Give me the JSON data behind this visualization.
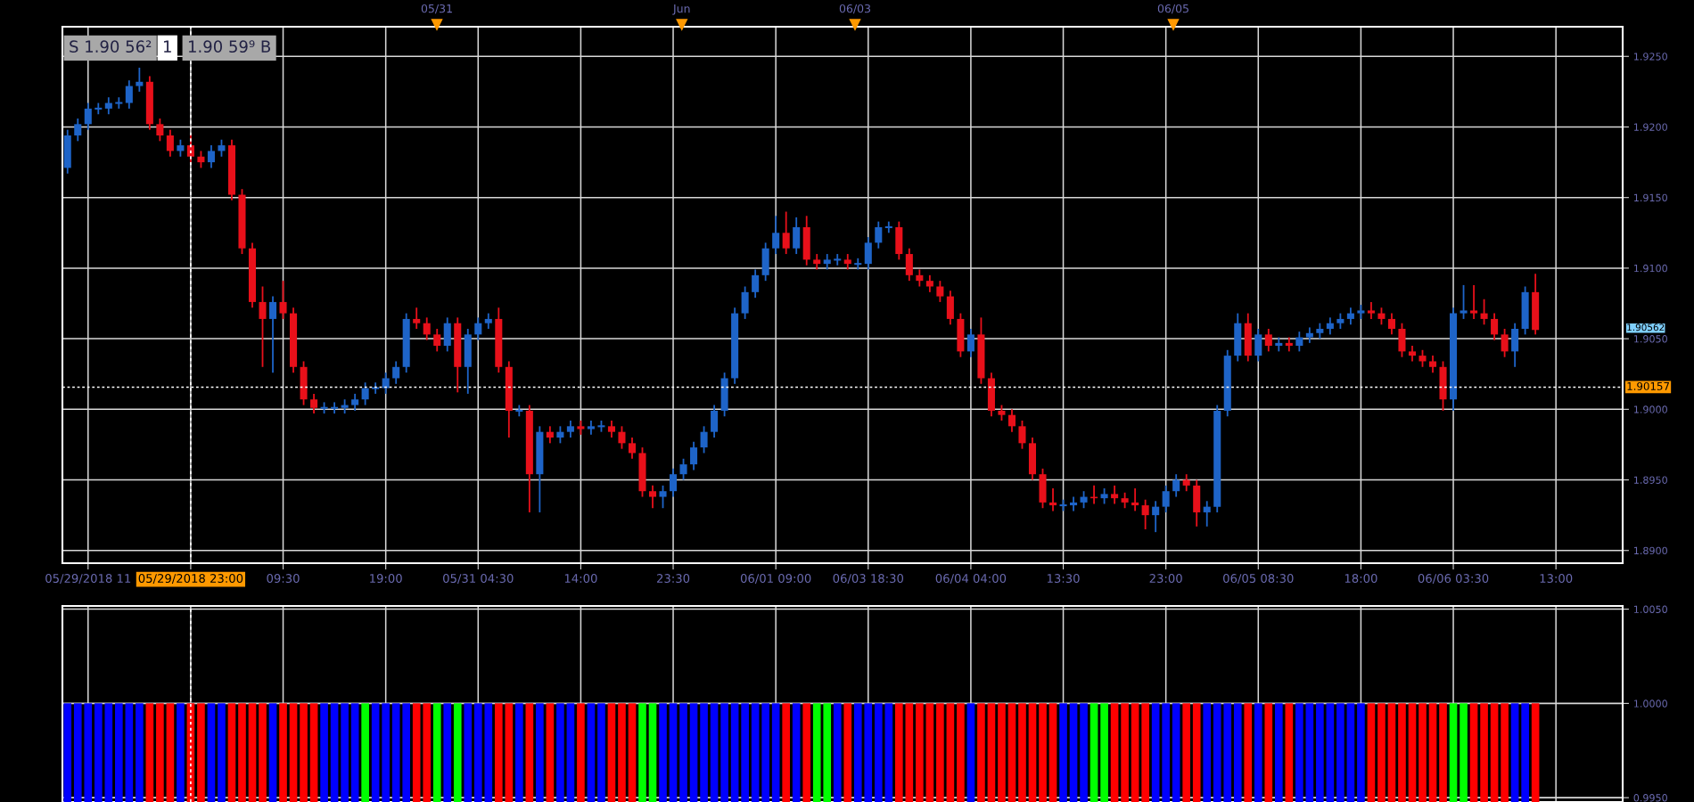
{
  "chart_data": [
    {
      "type": "candlestick",
      "annotations": [
        "S 1.90 56²",
        "1",
        "1.90 59⁹ B",
        "05/31",
        "Jun",
        "06/03",
        "06/05",
        "1.90562"
      ],
      "categories": [
        null,
        null,
        "05/29/2018 11",
        null,
        null,
        null,
        null,
        null,
        null,
        null,
        null,
        null,
        "05/29/2018 23:00",
        null,
        null,
        null,
        null,
        null,
        null,
        null,
        null,
        "09:30",
        null,
        null,
        null,
        null,
        null,
        null,
        null,
        null,
        null,
        "19:00",
        null,
        null,
        null,
        null,
        null,
        null,
        null,
        null,
        "05/31 04:30",
        null,
        null,
        null,
        null,
        null,
        null,
        null,
        null,
        null,
        "14:00",
        null,
        null,
        null,
        null,
        null,
        null,
        null,
        null,
        "23:30",
        null,
        null,
        null,
        null,
        null,
        null,
        null,
        null,
        null,
        "06/01 09:00",
        null,
        null,
        null,
        null,
        null,
        null,
        null,
        null,
        "06/03 18:30",
        null,
        null,
        null,
        null,
        null,
        null,
        null,
        null,
        null,
        "06/04 04:00",
        null,
        null,
        null,
        null,
        null,
        null,
        null,
        null,
        "13:30",
        null,
        null,
        null,
        null,
        null,
        null,
        null,
        null,
        null,
        "23:00",
        null,
        null,
        null,
        null,
        null,
        null,
        null,
        null,
        "06/05 08:30",
        null,
        null,
        null,
        null,
        null,
        null,
        null,
        null,
        null,
        "18:00",
        null,
        null,
        null,
        null,
        null,
        null,
        null,
        null,
        "06/06 03:30",
        null,
        null,
        null,
        null,
        null,
        null,
        null,
        null,
        null,
        "13:00",
        null,
        null,
        null,
        null,
        null,
        null
      ],
      "ylim": [
        1.8891,
        1.9271
      ],
      "yticks": [
        {
          "value": 1.89,
          "label": "1.8900"
        },
        {
          "value": 1.895,
          "label": "1.8950"
        },
        {
          "value": 1.9,
          "label": "1.9000"
        },
        {
          "value": 1.905,
          "label": "1.9050"
        },
        {
          "value": 1.91,
          "label": "1.9100"
        },
        {
          "value": 1.915,
          "label": "1.9150"
        },
        {
          "value": 1.92,
          "label": "1.9200"
        },
        {
          "value": 1.925,
          "label": "1.9250"
        }
      ],
      "grid": true,
      "ref_lines": [
        {
          "axis": "y",
          "value": 1.90157,
          "label": "1.90157",
          "line_style": "dotted"
        },
        {
          "axis": "x",
          "value": "05/29/2018 23:00",
          "line_style": "dotted"
        }
      ],
      "ohlc": [
        [
          1.9171,
          1.9198,
          1.9167,
          1.9194
        ],
        [
          1.9194,
          1.9206,
          1.919,
          1.9202
        ],
        [
          1.9202,
          1.9217,
          1.9198,
          1.9213
        ],
        [
          1.9213,
          1.9217,
          1.9209,
          1.9213
        ],
        [
          1.9213,
          1.9221,
          1.9209,
          1.9217
        ],
        [
          1.9217,
          1.9221,
          1.9213,
          1.9217
        ],
        [
          1.9217,
          1.9233,
          1.9213,
          1.9229
        ],
        [
          1.9229,
          1.9242,
          1.9225,
          1.9232
        ],
        [
          1.9232,
          1.9236,
          1.9198,
          1.9202
        ],
        [
          1.9202,
          1.9206,
          1.919,
          1.9194
        ],
        [
          1.9194,
          1.9198,
          1.9179,
          1.9183
        ],
        [
          1.9183,
          1.9191,
          1.9179,
          1.9187
        ],
        [
          1.9187,
          1.9195,
          1.9175,
          1.9179
        ],
        [
          1.9179,
          1.9183,
          1.9171,
          1.9175
        ],
        [
          1.9175,
          1.9187,
          1.9171,
          1.9183
        ],
        [
          1.9183,
          1.9191,
          1.9179,
          1.9187
        ],
        [
          1.9187,
          1.9191,
          1.9148,
          1.9152
        ],
        [
          1.9152,
          1.9156,
          1.911,
          1.9114
        ],
        [
          1.9114,
          1.9118,
          1.9072,
          1.9076
        ],
        [
          1.9076,
          1.9087,
          1.903,
          1.9064
        ],
        [
          1.9064,
          1.908,
          1.9026,
          1.9076
        ],
        [
          1.9076,
          1.9091,
          1.9064,
          1.9068
        ],
        [
          1.9068,
          1.9072,
          1.9026,
          1.903
        ],
        [
          1.903,
          1.9034,
          1.9003,
          1.9007
        ],
        [
          1.9007,
          1.9011,
          1.8997,
          1.9001
        ],
        [
          1.9001,
          1.9005,
          1.8997,
          1.9001
        ],
        [
          1.9001,
          1.9005,
          1.8997,
          1.9001
        ],
        [
          1.9001,
          1.9007,
          1.8997,
          1.9003
        ],
        [
          1.9003,
          1.9011,
          1.8999,
          1.9007
        ],
        [
          1.9007,
          1.9019,
          1.9003,
          1.9015
        ],
        [
          1.9015,
          1.9019,
          1.9011,
          1.9015
        ],
        [
          1.9015,
          1.9026,
          1.9011,
          1.9022
        ],
        [
          1.9022,
          1.9034,
          1.9018,
          1.903
        ],
        [
          1.903,
          1.9068,
          1.9026,
          1.9064
        ],
        [
          1.9064,
          1.9072,
          1.9057,
          1.9061
        ],
        [
          1.9061,
          1.9065,
          1.9049,
          1.9053
        ],
        [
          1.9053,
          1.9057,
          1.9041,
          1.9045
        ],
        [
          1.9045,
          1.9065,
          1.9041,
          1.9061
        ],
        [
          1.9061,
          1.9065,
          1.9012,
          1.903
        ],
        [
          1.903,
          1.9057,
          1.9011,
          1.9053
        ],
        [
          1.9053,
          1.9065,
          1.9049,
          1.9061
        ],
        [
          1.9061,
          1.9068,
          1.9057,
          1.9064
        ],
        [
          1.9064,
          1.9072,
          1.9026,
          1.903
        ],
        [
          1.903,
          1.9034,
          1.898,
          1.8999
        ],
        [
          1.8999,
          1.9003,
          1.8995,
          1.8999
        ],
        [
          1.8999,
          1.9003,
          1.8927,
          1.8954
        ],
        [
          1.8954,
          1.8988,
          1.8927,
          1.8984
        ],
        [
          1.8984,
          1.8988,
          1.8976,
          1.898
        ],
        [
          1.898,
          1.8988,
          1.8976,
          1.8984
        ],
        [
          1.8984,
          1.8992,
          1.898,
          1.8988
        ],
        [
          1.8988,
          1.8992,
          1.8982,
          1.8986
        ],
        [
          1.8986,
          1.8992,
          1.8982,
          1.8988
        ],
        [
          1.8988,
          1.8992,
          1.8984,
          1.8988
        ],
        [
          1.8988,
          1.8992,
          1.898,
          1.8984
        ],
        [
          1.8984,
          1.8988,
          1.8972,
          1.8976
        ],
        [
          1.8976,
          1.898,
          1.8965,
          1.8969
        ],
        [
          1.8969,
          1.8973,
          1.8938,
          1.8942
        ],
        [
          1.8942,
          1.8946,
          1.893,
          1.8938
        ],
        [
          1.8938,
          1.8946,
          1.893,
          1.8942
        ],
        [
          1.8942,
          1.8958,
          1.8938,
          1.8954
        ],
        [
          1.8954,
          1.8965,
          1.895,
          1.8961
        ],
        [
          1.8961,
          1.8977,
          1.8957,
          1.8973
        ],
        [
          1.8973,
          1.8988,
          1.8969,
          1.8984
        ],
        [
          1.8984,
          1.9003,
          1.898,
          1.8999
        ],
        [
          1.8999,
          1.9026,
          1.8995,
          1.9022
        ],
        [
          1.9022,
          1.9072,
          1.9018,
          1.9068
        ],
        [
          1.9068,
          1.9087,
          1.9064,
          1.9083
        ],
        [
          1.9083,
          1.9099,
          1.9079,
          1.9095
        ],
        [
          1.9095,
          1.9118,
          1.9091,
          1.9114
        ],
        [
          1.9114,
          1.9137,
          1.911,
          1.9125
        ],
        [
          1.9125,
          1.914,
          1.911,
          1.9114
        ],
        [
          1.9114,
          1.9136,
          1.911,
          1.9129
        ],
        [
          1.9129,
          1.9137,
          1.9102,
          1.9106
        ],
        [
          1.9106,
          1.911,
          1.9099,
          1.9103
        ],
        [
          1.9103,
          1.911,
          1.9099,
          1.9106
        ],
        [
          1.9106,
          1.911,
          1.9102,
          1.9106
        ],
        [
          1.9106,
          1.911,
          1.9099,
          1.9103
        ],
        [
          1.9103,
          1.9107,
          1.9099,
          1.9103
        ],
        [
          1.9103,
          1.9122,
          1.9099,
          1.9118
        ],
        [
          1.9118,
          1.9133,
          1.9114,
          1.9129
        ],
        [
          1.9129,
          1.9133,
          1.9125,
          1.9129
        ],
        [
          1.9129,
          1.9133,
          1.9106,
          1.911
        ],
        [
          1.911,
          1.9114,
          1.9091,
          1.9095
        ],
        [
          1.9095,
          1.9099,
          1.9087,
          1.9091
        ],
        [
          1.9091,
          1.9095,
          1.9083,
          1.9087
        ],
        [
          1.9087,
          1.9091,
          1.9076,
          1.908
        ],
        [
          1.908,
          1.9084,
          1.906,
          1.9064
        ],
        [
          1.9064,
          1.9068,
          1.9037,
          1.9041
        ],
        [
          1.9041,
          1.9057,
          1.9037,
          1.9053
        ],
        [
          1.9053,
          1.9065,
          1.9018,
          1.9022
        ],
        [
          1.9022,
          1.9026,
          1.8995,
          1.8999
        ],
        [
          1.8999,
          1.9003,
          1.8992,
          1.8996
        ],
        [
          1.8996,
          1.9,
          1.8984,
          1.8988
        ],
        [
          1.8988,
          1.8992,
          1.8972,
          1.8976
        ],
        [
          1.8976,
          1.898,
          1.895,
          1.8954
        ],
        [
          1.8954,
          1.8958,
          1.893,
          1.8934
        ],
        [
          1.8934,
          1.8944,
          1.8928,
          1.8932
        ],
        [
          1.8932,
          1.8936,
          1.8928,
          1.8932
        ],
        [
          1.8932,
          1.8938,
          1.8928,
          1.8934
        ],
        [
          1.8934,
          1.8942,
          1.893,
          1.8938
        ],
        [
          1.8938,
          1.8946,
          1.8933,
          1.8937
        ],
        [
          1.8937,
          1.8944,
          1.8933,
          1.894
        ],
        [
          1.894,
          1.8946,
          1.8933,
          1.8937
        ],
        [
          1.8937,
          1.8941,
          1.893,
          1.8934
        ],
        [
          1.8934,
          1.8944,
          1.8928,
          1.8932
        ],
        [
          1.8932,
          1.8936,
          1.8915,
          1.8925
        ],
        [
          1.8925,
          1.8935,
          1.8913,
          1.8931
        ],
        [
          1.8931,
          1.8946,
          1.8927,
          1.8942
        ],
        [
          1.8942,
          1.8954,
          1.8938,
          1.895
        ],
        [
          1.895,
          1.8954,
          1.8942,
          1.8946
        ],
        [
          1.8946,
          1.895,
          1.8917,
          1.8927
        ],
        [
          1.8927,
          1.8935,
          1.8917,
          1.8931
        ],
        [
          1.8931,
          1.9003,
          1.8927,
          1.8999
        ],
        [
          1.8999,
          1.9042,
          1.8995,
          1.9038
        ],
        [
          1.9038,
          1.9068,
          1.9034,
          1.9061
        ],
        [
          1.9061,
          1.9068,
          1.9034,
          1.9038
        ],
        [
          1.9038,
          1.9057,
          1.9034,
          1.9053
        ],
        [
          1.9053,
          1.9057,
          1.9041,
          1.9045
        ],
        [
          1.9045,
          1.9051,
          1.9041,
          1.9047
        ],
        [
          1.9047,
          1.9051,
          1.9041,
          1.9045
        ],
        [
          1.9045,
          1.9055,
          1.9041,
          1.9051
        ],
        [
          1.9051,
          1.9058,
          1.9047,
          1.9054
        ],
        [
          1.9054,
          1.9061,
          1.905,
          1.9057
        ],
        [
          1.9057,
          1.9065,
          1.9053,
          1.9061
        ],
        [
          1.9061,
          1.9068,
          1.9057,
          1.9064
        ],
        [
          1.9064,
          1.9072,
          1.906,
          1.9068
        ],
        [
          1.9068,
          1.9074,
          1.9064,
          1.907
        ],
        [
          1.907,
          1.9076,
          1.9064,
          1.9068
        ],
        [
          1.9068,
          1.9072,
          1.906,
          1.9064
        ],
        [
          1.9064,
          1.9068,
          1.9053,
          1.9057
        ],
        [
          1.9057,
          1.9061,
          1.9037,
          1.9041
        ],
        [
          1.9041,
          1.9045,
          1.9034,
          1.9038
        ],
        [
          1.9038,
          1.9042,
          1.903,
          1.9034
        ],
        [
          1.9034,
          1.9038,
          1.9026,
          1.903
        ],
        [
          1.903,
          1.9034,
          1.8999,
          1.9007
        ],
        [
          1.9007,
          1.9072,
          1.8999,
          1.9068
        ],
        [
          1.9068,
          1.9088,
          1.9064,
          1.907
        ],
        [
          1.907,
          1.9088,
          1.9064,
          1.9068
        ],
        [
          1.9068,
          1.9078,
          1.906,
          1.9064
        ],
        [
          1.9064,
          1.9068,
          1.9049,
          1.9053
        ],
        [
          1.9053,
          1.9057,
          1.9037,
          1.9041
        ],
        [
          1.9041,
          1.9061,
          1.903,
          1.9057
        ],
        [
          1.9057,
          1.9087,
          1.9053,
          1.9083
        ],
        [
          1.9083,
          1.9096,
          1.9053,
          1.90562
        ],
        null,
        null,
        null,
        null,
        null,
        null,
        null,
        null
      ],
      "colors": [
        "#1e64c8",
        "#1e64c8",
        "#1e64c8",
        "#1e64c8",
        "#1e64c8",
        "#1e64c8",
        "#1e64c8",
        "#1e64c8",
        "#e8101a",
        "#e8101a",
        "#e8101a",
        "#1e64c8",
        "#e8101a",
        "#e8101a",
        "#1e64c8",
        "#1e64c8",
        "#e8101a",
        "#e8101a",
        "#e8101a",
        "#e8101a",
        "#1e64c8",
        "#e8101a",
        "#e8101a",
        "#e8101a",
        "#e8101a",
        "#1e64c8",
        "#1e64c8",
        "#1e64c8",
        "#1e64c8",
        "#1e64c8",
        "#1e64c8",
        "#1e64c8",
        "#1e64c8",
        "#1e64c8",
        "#e8101a",
        "#e8101a",
        "#e8101a",
        "#1e64c8",
        "#e8101a",
        "#1e64c8",
        "#1e64c8",
        "#1e64c8",
        "#e8101a",
        "#e8101a",
        "#1e64c8",
        "#e8101a",
        "#1e64c8",
        "#e8101a",
        "#1e64c8",
        "#1e64c8",
        "#e8101a",
        "#1e64c8",
        "#1e64c8",
        "#e8101a",
        "#e8101a",
        "#e8101a",
        "#e8101a",
        "#e8101a",
        "#1e64c8",
        "#1e64c8",
        "#1e64c8",
        "#1e64c8",
        "#1e64c8",
        "#1e64c8",
        "#1e64c8",
        "#1e64c8",
        "#1e64c8",
        "#1e64c8",
        "#1e64c8",
        "#1e64c8",
        "#e8101a",
        "#1e64c8",
        "#e8101a",
        "#e8101a",
        "#1e64c8",
        "#1e64c8",
        "#e8101a",
        "#1e64c8",
        "#1e64c8",
        "#1e64c8",
        "#1e64c8",
        "#e8101a",
        "#e8101a",
        "#e8101a",
        "#e8101a",
        "#e8101a",
        "#e8101a",
        "#e8101a",
        "#1e64c8",
        "#e8101a",
        "#e8101a",
        "#e8101a",
        "#e8101a",
        "#e8101a",
        "#e8101a",
        "#e8101a",
        "#e8101a",
        "#1e64c8",
        "#1e64c8",
        "#1e64c8",
        "#e8101a",
        "#1e64c8",
        "#e8101a",
        "#e8101a",
        "#e8101a",
        "#e8101a",
        "#1e64c8",
        "#1e64c8",
        "#1e64c8",
        "#e8101a",
        "#e8101a",
        "#1e64c8",
        "#1e64c8",
        "#1e64c8",
        "#1e64c8",
        "#e8101a",
        "#1e64c8",
        "#e8101a",
        "#1e64c8",
        "#e8101a",
        "#1e64c8",
        "#1e64c8",
        "#1e64c8",
        "#1e64c8",
        "#1e64c8",
        "#1e64c8",
        "#1e64c8",
        "#e8101a",
        "#e8101a",
        "#e8101a",
        "#e8101a",
        "#e8101a",
        "#e8101a",
        "#e8101a",
        "#e8101a",
        "#1e64c8",
        "#1e64c8",
        "#e8101a",
        "#e8101a",
        "#e8101a",
        "#e8101a",
        "#1e64c8",
        "#1e64c8",
        "#e8101a",
        null,
        null,
        null,
        null,
        null,
        null,
        null,
        null
      ]
    },
    {
      "type": "bar",
      "categories": [
        null,
        null,
        "05/29/2018 11",
        null,
        null,
        null,
        null,
        null,
        null,
        null,
        null,
        null,
        "05/29/2018 23:00",
        null,
        null,
        null,
        null,
        null,
        null,
        null,
        null,
        "09:30",
        null,
        null,
        null,
        null,
        null,
        null,
        null,
        null,
        null,
        "19:00",
        null,
        null,
        null,
        null,
        null,
        null,
        null,
        null,
        "05/31 04:30",
        null,
        null,
        null,
        null,
        null,
        null,
        null,
        null,
        null,
        "14:00",
        null,
        null,
        null,
        null,
        null,
        null,
        null,
        null,
        "23:30",
        null,
        null,
        null,
        null,
        null,
        null,
        null,
        null,
        null,
        "06/01 09:00",
        null,
        null,
        null,
        null,
        null,
        null,
        null,
        null,
        "06/03 18:30",
        null,
        null,
        null,
        null,
        null,
        null,
        null,
        null,
        null,
        "06/04 04:00",
        null,
        null,
        null,
        null,
        null,
        null,
        null,
        null,
        "13:30",
        null,
        null,
        null,
        null,
        null,
        null,
        null,
        null,
        null,
        "23:00",
        null,
        null,
        null,
        null,
        null,
        null,
        null,
        null,
        "06/05 08:30",
        null,
        null,
        null,
        null,
        null,
        null,
        null,
        null,
        null,
        "18:00",
        null,
        null,
        null,
        null,
        null,
        null,
        null,
        null,
        "06/06 03:30",
        null,
        null,
        null,
        null,
        null,
        null,
        null,
        null,
        null,
        "13:00",
        null,
        null,
        null,
        null,
        null,
        null
      ],
      "values": [
        1,
        1,
        1,
        1,
        1,
        1,
        1,
        1,
        1,
        1,
        1,
        1,
        1,
        1,
        1,
        1,
        1,
        1,
        1,
        1,
        1,
        1,
        1,
        1,
        1,
        1,
        1,
        1,
        1,
        1,
        1,
        1,
        1,
        1,
        1,
        1,
        1,
        1,
        1,
        1,
        1,
        1,
        1,
        1,
        1,
        1,
        1,
        1,
        1,
        1,
        1,
        1,
        1,
        1,
        1,
        1,
        1,
        1,
        1,
        1,
        1,
        1,
        1,
        1,
        1,
        1,
        1,
        1,
        1,
        1,
        1,
        1,
        1,
        1,
        1,
        1,
        1,
        1,
        1,
        1,
        1,
        1,
        1,
        1,
        1,
        1,
        1,
        1,
        1,
        1,
        1,
        1,
        1,
        1,
        1,
        1,
        1,
        1,
        1,
        1,
        1,
        1,
        1,
        1,
        1,
        1,
        1,
        1,
        1,
        1,
        1,
        1,
        1,
        1,
        1,
        1,
        1,
        1,
        1,
        1,
        1,
        1,
        1,
        1,
        1,
        1,
        1,
        1,
        1,
        1,
        1,
        1,
        1,
        1,
        1,
        1,
        1,
        1,
        1,
        1,
        1,
        1,
        1,
        1,
        null,
        null,
        null,
        null,
        null,
        null,
        null,
        null
      ],
      "colors": [
        "#0000ff",
        "#0000ff",
        "#0000ff",
        "#0000ff",
        "#0000ff",
        "#0000ff",
        "#0000ff",
        "#0000ff",
        "#ff0000",
        "#ff0000",
        "#ff0000",
        "#0000ff",
        "#ff0000",
        "#ff0000",
        "#0000ff",
        "#0000ff",
        "#ff0000",
        "#ff0000",
        "#ff0000",
        "#ff0000",
        "#0000ff",
        "#ff0000",
        "#ff0000",
        "#ff0000",
        "#ff0000",
        "#0000ff",
        "#0000ff",
        "#0000ff",
        "#0000ff",
        "#00ff00",
        "#0000ff",
        "#0000ff",
        "#0000ff",
        "#0000ff",
        "#ff0000",
        "#ff0000",
        "#00ff00",
        "#0000ff",
        "#00ff00",
        "#0000ff",
        "#0000ff",
        "#0000ff",
        "#ff0000",
        "#ff0000",
        "#0000ff",
        "#ff0000",
        "#0000ff",
        "#ff0000",
        "#0000ff",
        "#0000ff",
        "#ff0000",
        "#0000ff",
        "#0000ff",
        "#ff0000",
        "#ff0000",
        "#ff0000",
        "#00ff00",
        "#00ff00",
        "#0000ff",
        "#0000ff",
        "#0000ff",
        "#0000ff",
        "#0000ff",
        "#0000ff",
        "#0000ff",
        "#0000ff",
        "#0000ff",
        "#0000ff",
        "#0000ff",
        "#0000ff",
        "#ff0000",
        "#0000ff",
        "#ff0000",
        "#00ff00",
        "#00ff00",
        "#0000ff",
        "#ff0000",
        "#0000ff",
        "#0000ff",
        "#0000ff",
        "#0000ff",
        "#ff0000",
        "#ff0000",
        "#ff0000",
        "#ff0000",
        "#ff0000",
        "#ff0000",
        "#ff0000",
        "#0000ff",
        "#ff0000",
        "#ff0000",
        "#ff0000",
        "#ff0000",
        "#ff0000",
        "#ff0000",
        "#ff0000",
        "#ff0000",
        "#0000ff",
        "#0000ff",
        "#0000ff",
        "#00ff00",
        "#00ff00",
        "#ff0000",
        "#ff0000",
        "#ff0000",
        "#ff0000",
        "#0000ff",
        "#0000ff",
        "#0000ff",
        "#ff0000",
        "#ff0000",
        "#0000ff",
        "#0000ff",
        "#0000ff",
        "#0000ff",
        "#ff0000",
        "#0000ff",
        "#ff0000",
        "#0000ff",
        "#ff0000",
        "#0000ff",
        "#0000ff",
        "#0000ff",
        "#0000ff",
        "#0000ff",
        "#0000ff",
        "#0000ff",
        "#ff0000",
        "#ff0000",
        "#ff0000",
        "#ff0000",
        "#ff0000",
        "#ff0000",
        "#ff0000",
        "#ff0000",
        "#00ff00",
        "#00ff00",
        "#ff0000",
        "#ff0000",
        "#ff0000",
        "#ff0000",
        "#0000ff",
        "#0000ff",
        "#ff0000",
        null,
        null,
        null,
        null,
        null,
        null,
        null,
        null
      ],
      "ylim": [
        0.99477,
        1.00517
      ],
      "yticks": [
        {
          "value": 0.995,
          "label": "0.9950"
        },
        {
          "value": 1.0,
          "label": "1.0000"
        },
        {
          "value": 1.005,
          "label": "1.0050"
        }
      ],
      "tick_labels": "y",
      "grid": true,
      "ref_lines": [
        {
          "axis": "x",
          "value": "05/29/2018 23:00",
          "line_style": "dotted"
        }
      ]
    }
  ]
}
